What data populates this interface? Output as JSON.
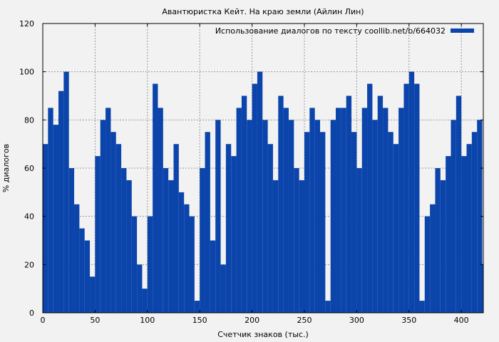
{
  "chart_data": {
    "type": "bar",
    "title": "Авантюристка Кейт. На краю земли (Айлин Лин)",
    "xlabel": "Счетчик знаков (тыс.)",
    "ylabel": "% диалогов",
    "xlim": [
      0,
      421
    ],
    "ylim": [
      0,
      120
    ],
    "xticks": [
      "0",
      "50",
      "100",
      "150",
      "200",
      "250",
      "300",
      "350",
      "400"
    ],
    "yticks": [
      "0",
      "20",
      "40",
      "60",
      "80",
      "100",
      "120"
    ],
    "grid": true,
    "legend_position": "top-right",
    "bar_color": "#0b44aa",
    "series": [
      {
        "name": "Использование диалогов по тексту coollib.net/b/664032",
        "x": [
          0,
          5,
          10,
          15,
          20,
          25,
          30,
          35,
          40,
          45,
          50,
          55,
          60,
          65,
          70,
          75,
          80,
          85,
          90,
          95,
          100,
          105,
          110,
          115,
          120,
          125,
          130,
          135,
          140,
          145,
          150,
          155,
          160,
          165,
          170,
          175,
          180,
          185,
          190,
          195,
          200,
          205,
          210,
          215,
          220,
          225,
          230,
          235,
          240,
          245,
          250,
          255,
          260,
          265,
          270,
          275,
          280,
          285,
          290,
          295,
          300,
          305,
          310,
          315,
          320,
          325,
          330,
          335,
          340,
          345,
          350,
          355,
          360,
          365,
          370,
          375,
          380,
          385,
          390,
          395,
          400,
          405,
          410,
          415,
          420
        ],
        "values": [
          70,
          85,
          78,
          92,
          100,
          60,
          45,
          35,
          30,
          15,
          65,
          80,
          85,
          75,
          70,
          60,
          55,
          40,
          20,
          10,
          40,
          95,
          85,
          60,
          55,
          70,
          50,
          45,
          40,
          5,
          60,
          75,
          30,
          80,
          20,
          70,
          65,
          85,
          90,
          80,
          95,
          100,
          80,
          70,
          55,
          90,
          85,
          80,
          60,
          55,
          75,
          85,
          80,
          75,
          5,
          80,
          85,
          85,
          90,
          75,
          60,
          85,
          95,
          80,
          90,
          85,
          75,
          70,
          85,
          95,
          100,
          95,
          5,
          40,
          45,
          60,
          55,
          65,
          80,
          90,
          65,
          70,
          75,
          80,
          20
        ]
      }
    ]
  }
}
